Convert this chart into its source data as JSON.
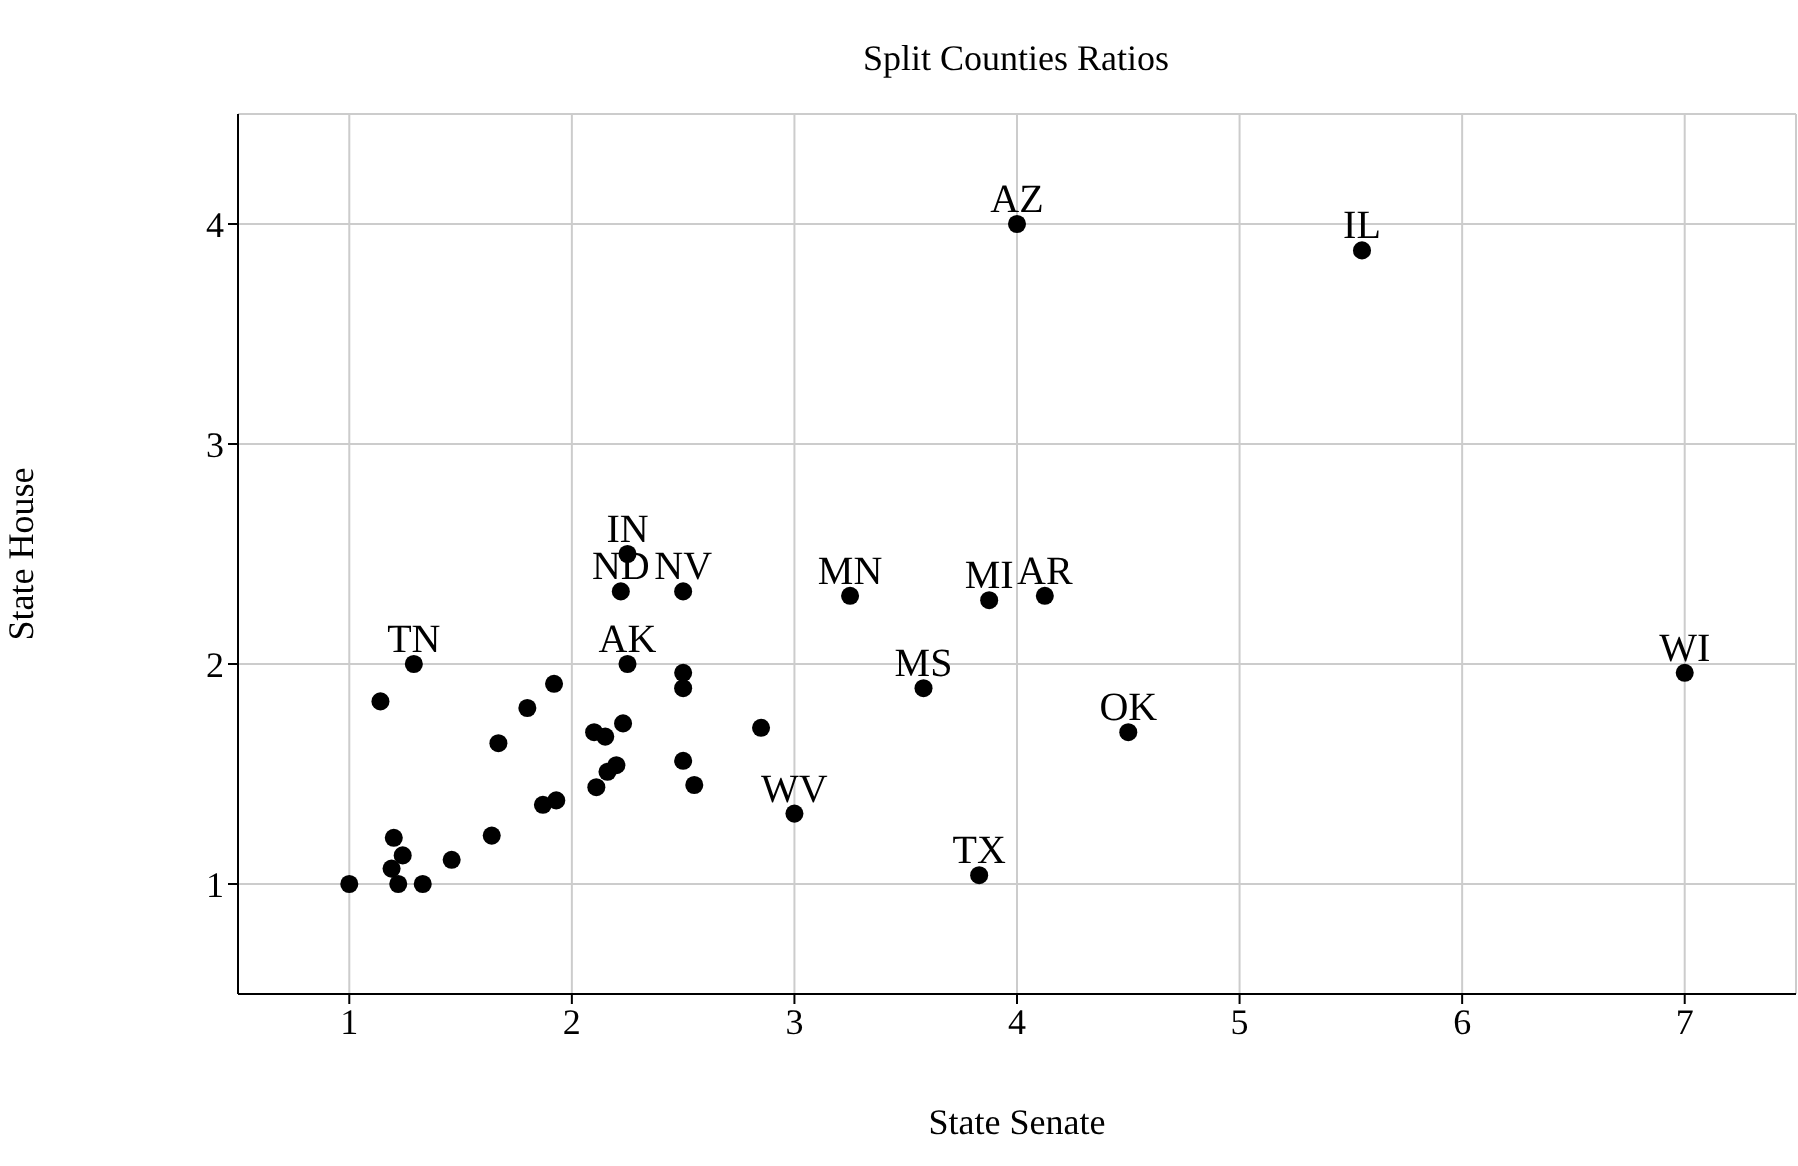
{
  "chart_data": {
    "type": "scatter",
    "title": "Split Counties Ratios",
    "xlabel": "State Senate",
    "ylabel": "State House",
    "xlim": [
      0.5,
      7.5
    ],
    "ylim": [
      0.5,
      4.5
    ],
    "xticks": [
      1,
      2,
      3,
      4,
      5,
      6,
      7
    ],
    "yticks": [
      1,
      2,
      3,
      4
    ],
    "grid": true,
    "marker": "circle",
    "series": [
      {
        "color": "#000000",
        "x": [
          1,
          1.29,
          1.14,
          1.92,
          1.8,
          1.67,
          2.1,
          2.15,
          2.23,
          2.25,
          2.25,
          2.22,
          2.5,
          2.5,
          2.5,
          2.85,
          2.5,
          2.55,
          3,
          2.11,
          2.16,
          2.2,
          1.87,
          1.93,
          1.64,
          1.46,
          1.2,
          1.24,
          1.19,
          1.22,
          1.33,
          3.25,
          3.875,
          4.125,
          3.58,
          3.83,
          4.5,
          4,
          5.55,
          7
        ],
        "values": [
          1,
          2,
          1.83,
          1.91,
          1.8,
          1.64,
          1.69,
          1.67,
          1.73,
          2,
          2.5,
          2.33,
          2.33,
          1.96,
          1.89,
          1.71,
          1.56,
          1.45,
          1.32,
          1.44,
          1.51,
          1.54,
          1.36,
          1.38,
          1.22,
          1.11,
          1.21,
          1.13,
          1.07,
          1,
          1,
          2.31,
          2.29,
          2.31,
          1.89,
          1.04,
          1.69,
          4,
          3.88,
          1.96
        ]
      }
    ],
    "annotations": [
      {
        "text": "TN",
        "x": 1.29,
        "y": 2
      },
      {
        "text": "AK",
        "x": 2.25,
        "y": 2
      },
      {
        "text": "IN",
        "x": 2.25,
        "y": 2.5
      },
      {
        "text": "ND",
        "x": 2.22,
        "y": 2.33
      },
      {
        "text": "NV",
        "x": 2.5,
        "y": 2.33
      },
      {
        "text": "WV",
        "x": 3,
        "y": 1.32
      },
      {
        "text": "MN",
        "x": 3.25,
        "y": 2.31
      },
      {
        "text": "MI",
        "x": 3.875,
        "y": 2.29
      },
      {
        "text": "AR",
        "x": 4.125,
        "y": 2.31
      },
      {
        "text": "MS",
        "x": 3.58,
        "y": 1.89
      },
      {
        "text": "TX",
        "x": 3.83,
        "y": 1.04
      },
      {
        "text": "OK",
        "x": 4.5,
        "y": 1.69
      },
      {
        "text": "AZ",
        "x": 4,
        "y": 4
      },
      {
        "text": "IL",
        "x": 5.55,
        "y": 3.88
      },
      {
        "text": "WI",
        "x": 7,
        "y": 1.96
      }
    ]
  }
}
